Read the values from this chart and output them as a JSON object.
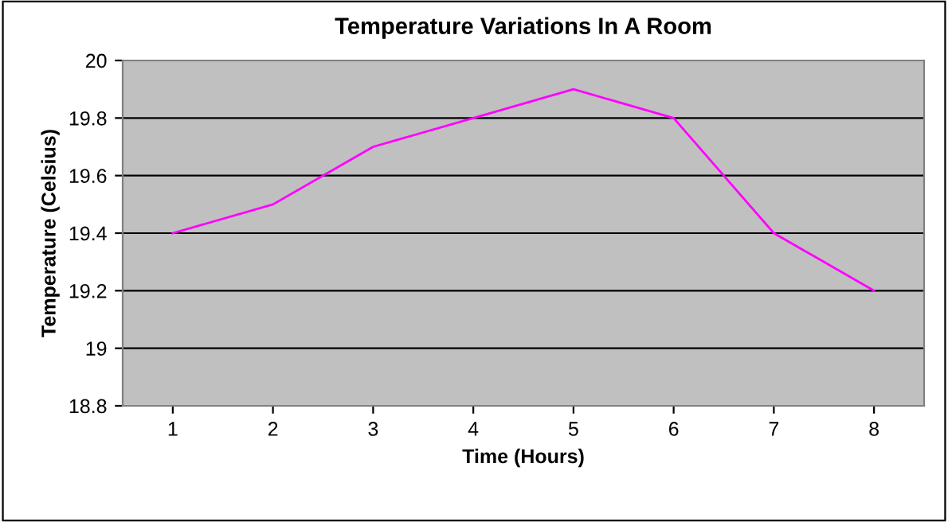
{
  "chart_data": {
    "type": "line",
    "title": "Temperature Variations In A Room",
    "xlabel": "Time (Hours)",
    "ylabel": "Temperature (Celsius)",
    "categories": [
      "1",
      "2",
      "3",
      "4",
      "5",
      "6",
      "7",
      "8"
    ],
    "series": [
      {
        "color": "#ff00ff",
        "values": [
          19.4,
          19.5,
          19.7,
          19.8,
          19.9,
          19.8,
          19.4,
          19.2
        ]
      }
    ],
    "ylim": [
      18.8,
      20
    ],
    "yticks": [
      18.8,
      19,
      19.2,
      19.4,
      19.6,
      19.8,
      20
    ],
    "grid": "y",
    "legend": false,
    "marker": "none",
    "line_style": "solid"
  }
}
